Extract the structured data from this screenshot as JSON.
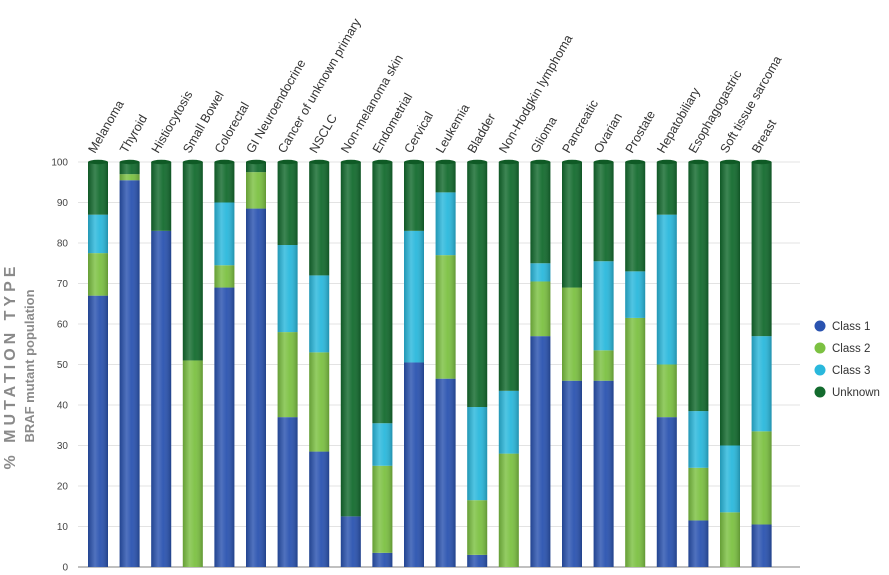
{
  "chart_data": {
    "type": "bar",
    "stacked": true,
    "title": "",
    "ylabel_line1": "% MUTATION TYPE",
    "ylabel_line2": "BRAF mutant population",
    "xlabel": "",
    "ylim": [
      0,
      100
    ],
    "yticks": [
      0,
      10,
      20,
      30,
      40,
      50,
      60,
      70,
      80,
      90,
      100
    ],
    "grid": true,
    "legend_position": "right",
    "categories": [
      "Melanoma",
      "Thyroid",
      "Histiocytosis",
      "Small Bowel",
      "Colorectal",
      "GI Neuroendocrine",
      "Cancer of unknown primary",
      "NSCLC",
      "Non-melanoma skin",
      "Endometrial",
      "Cervical",
      "Leukemia",
      "Bladder",
      "Non-Hodgkin lymphoma",
      "Glioma",
      "Pancreatic",
      "Ovarian",
      "Prostate",
      "Hepatobiliary",
      "Esophagogastric",
      "Soft tissue sarcoma",
      "Breast"
    ],
    "series": [
      {
        "name": "Class 1",
        "color": "#2a53b0",
        "values": [
          67,
          95.5,
          83,
          0,
          69,
          88.5,
          37,
          28.5,
          12.5,
          3.5,
          50.5,
          46.5,
          3,
          0,
          57,
          46,
          46,
          0,
          37,
          11.5,
          0,
          10.5
        ]
      },
      {
        "name": "Class 2",
        "color": "#7cc142",
        "values": [
          10.5,
          1.5,
          0,
          51,
          5.5,
          9,
          21,
          24.5,
          0,
          21.5,
          0,
          30.5,
          13.5,
          28,
          13.5,
          23,
          7.5,
          61.5,
          13,
          13,
          13.5,
          23
        ]
      },
      {
        "name": "Class 3",
        "color": "#2ab8dc",
        "values": [
          9.5,
          0,
          0,
          0,
          15.5,
          0,
          21.5,
          19,
          0,
          10.5,
          32.5,
          15.5,
          23,
          15.5,
          4.5,
          0,
          22,
          11.5,
          37,
          14,
          16.5,
          23.5
        ]
      },
      {
        "name": "Unknown",
        "color": "#136b2e",
        "values": [
          13,
          3,
          17,
          49,
          10,
          2.5,
          20.5,
          28,
          87.5,
          64.5,
          17,
          7.5,
          60.5,
          56.5,
          25,
          31,
          24.5,
          27,
          13,
          61.5,
          70,
          43
        ]
      }
    ]
  }
}
